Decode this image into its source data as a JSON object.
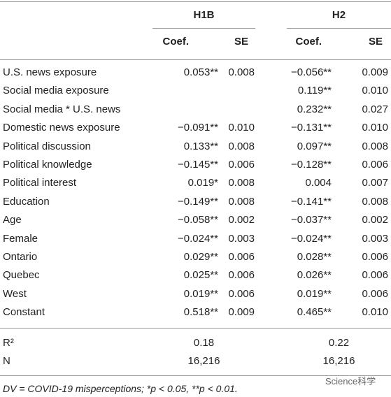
{
  "table": {
    "groups": [
      "H1B",
      "H2"
    ],
    "subheaders": [
      "Coef.",
      "SE",
      "Coef.",
      "SE"
    ],
    "rows": [
      [
        "U.S. news exposure",
        "0.053**",
        "0.008",
        "−0.056**",
        "0.009"
      ],
      [
        "Social media exposure",
        null,
        null,
        "0.119**",
        "0.010"
      ],
      [
        "Social media * U.S. news",
        null,
        null,
        "0.232**",
        "0.027"
      ],
      [
        "Domestic news exposure",
        "−0.091**",
        "0.010",
        "−0.131**",
        "0.010"
      ],
      [
        "Political discussion",
        "0.133**",
        "0.008",
        "0.097**",
        "0.008"
      ],
      [
        "Political knowledge",
        "−0.145**",
        "0.006",
        "−0.128**",
        "0.006"
      ],
      [
        "Political interest",
        "0.019*",
        "0.008",
        "0.004",
        "0.007"
      ],
      [
        "Education",
        "−0.149**",
        "0.008",
        "−0.141**",
        "0.008"
      ],
      [
        "Age",
        "−0.058**",
        "0.002",
        "−0.037**",
        "0.002"
      ],
      [
        "Female",
        "−0.024**",
        "0.003",
        "−0.024**",
        "0.003"
      ],
      [
        "Ontario",
        "0.029**",
        "0.006",
        "0.028**",
        "0.006"
      ],
      [
        "Quebec",
        "0.025**",
        "0.006",
        "0.026**",
        "0.006"
      ],
      [
        "West",
        "0.019**",
        "0.006",
        "0.019**",
        "0.006"
      ],
      [
        "Constant",
        "0.518**",
        "0.009",
        "0.465**",
        "0.010"
      ]
    ],
    "stats": [
      [
        "R²",
        "0.18",
        "0.22"
      ],
      [
        "N",
        "16,216",
        "16,216"
      ]
    ],
    "footnote": "DV = COVID-19 misperceptions; *p < 0.05, **p < 0.01.",
    "watermark": "Science科学"
  }
}
